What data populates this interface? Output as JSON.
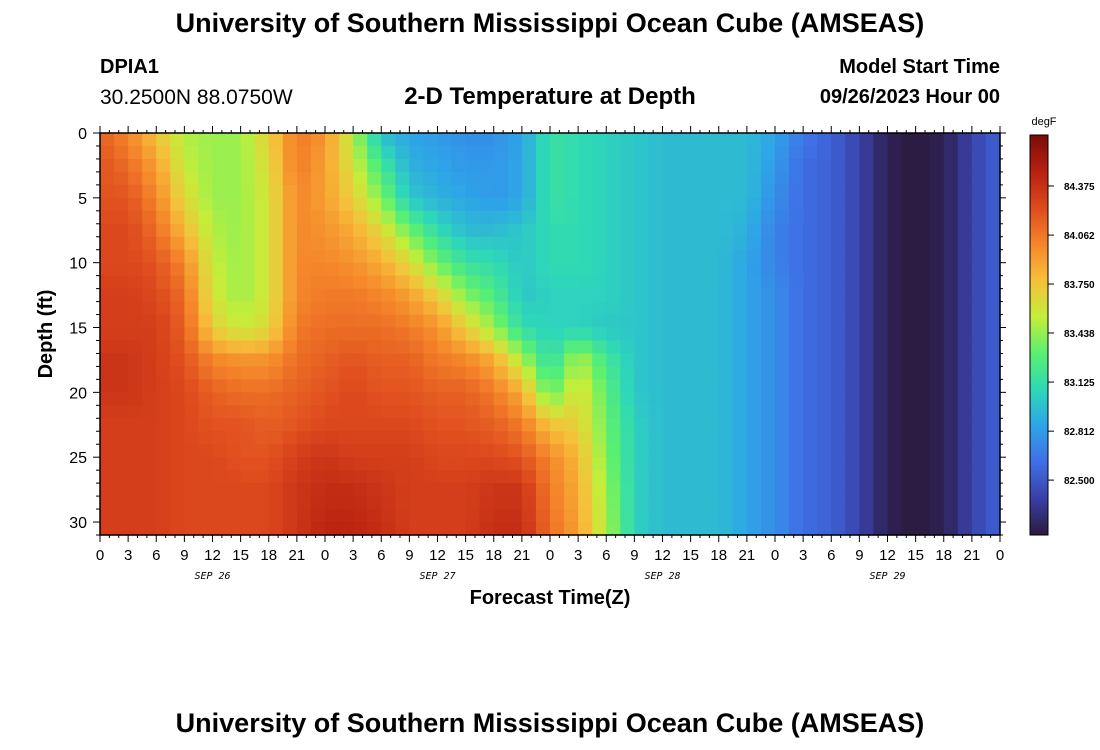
{
  "header": {
    "title": "University of Southern Mississippi Ocean Cube (AMSEAS)",
    "station_id": "DPIA1",
    "station_coords": "30.2500N  88.0750W",
    "plot_title": "2-D Temperature at Depth",
    "run_label": "Model Start Time",
    "run_value": "09/26/2023 Hour 00"
  },
  "footer": {
    "title": "University of Southern Mississippi Ocean Cube (AMSEAS)"
  },
  "chart_data": {
    "type": "heatmap",
    "title": "2-D Temperature at Depth",
    "xlabel": "Forecast Time(Z)",
    "ylabel": "Depth (ft)",
    "x_tick_labels": [
      "0",
      "3",
      "6",
      "9",
      "12",
      "15",
      "18",
      "21",
      "0",
      "3",
      "6",
      "9",
      "12",
      "15",
      "18",
      "21",
      "0",
      "3",
      "6",
      "9",
      "12",
      "15",
      "18",
      "21",
      "0",
      "3",
      "6",
      "9",
      "12",
      "15",
      "18",
      "21",
      "0"
    ],
    "date_labels": [
      {
        "label": "SEP 26",
        "hour_index": 12
      },
      {
        "label": "SEP 27",
        "hour_index": 36
      },
      {
        "label": "SEP 28",
        "hour_index": 60
      },
      {
        "label": "SEP 29",
        "hour_index": 84
      }
    ],
    "x_range_hours": [
      0,
      96
    ],
    "x_step_hours": 3,
    "ylim": [
      0,
      31
    ],
    "y_ticks": [
      0,
      5,
      10,
      15,
      20,
      25,
      30
    ],
    "y_inverted": true,
    "colorbar": {
      "unit": "degF",
      "tick_labels": [
        "84.375",
        "84.062",
        "83.750",
        "83.438",
        "83.125",
        "82.812",
        "82.500"
      ],
      "range": [
        82.15,
        84.7
      ],
      "colors": [
        "#2a1a3d",
        "#3a3fa6",
        "#3f6fe6",
        "#2ea4e8",
        "#2ed8b8",
        "#5af070",
        "#c4ee3a",
        "#f6c03a",
        "#f5862a",
        "#de4a1e",
        "#b82010",
        "#7a0c06"
      ]
    },
    "grid": false,
    "depths_ft": [
      0,
      2.5,
      5,
      7.5,
      10,
      12.5,
      15,
      17.5,
      20,
      22.5,
      25,
      27.5,
      31
    ],
    "times_hours": [
      0,
      3,
      6,
      9,
      12,
      15,
      18,
      21,
      24,
      27,
      30,
      33,
      36,
      39,
      42,
      45,
      48,
      51,
      54,
      57,
      60,
      63,
      66,
      69,
      72,
      75,
      78,
      81,
      84,
      87,
      90,
      93,
      96
    ],
    "temperature_degF": [
      [
        84.15,
        84.0,
        83.75,
        83.5,
        83.45,
        83.45,
        83.7,
        84.05,
        83.95,
        83.5,
        82.95,
        82.85,
        82.8,
        82.75,
        82.75,
        82.85,
        83.15,
        83.1,
        83.05,
        83.0,
        82.95,
        82.95,
        82.95,
        82.95,
        82.85,
        82.65,
        82.55,
        82.4,
        82.2,
        82.15,
        82.2,
        82.4,
        82.55
      ],
      [
        84.2,
        84.1,
        83.9,
        83.55,
        83.45,
        83.45,
        83.65,
        84.05,
        83.9,
        83.6,
        83.2,
        82.9,
        82.85,
        82.8,
        82.8,
        82.85,
        83.15,
        83.1,
        83.05,
        83.0,
        82.95,
        82.95,
        82.95,
        82.95,
        82.8,
        82.6,
        82.55,
        82.4,
        82.2,
        82.15,
        82.2,
        82.4,
        82.55
      ],
      [
        84.2,
        84.2,
        84.0,
        83.65,
        83.45,
        83.45,
        83.6,
        84.0,
        83.9,
        83.7,
        83.4,
        83.0,
        82.9,
        82.85,
        82.8,
        82.85,
        83.15,
        83.1,
        83.05,
        83.0,
        82.95,
        82.95,
        82.95,
        82.95,
        82.75,
        82.6,
        82.55,
        82.4,
        82.2,
        82.15,
        82.2,
        82.4,
        82.55
      ],
      [
        84.25,
        84.25,
        84.1,
        83.8,
        83.5,
        83.45,
        83.6,
        84.0,
        83.95,
        83.85,
        83.65,
        83.35,
        83.1,
        82.95,
        82.95,
        83.0,
        83.1,
        83.1,
        83.05,
        83.0,
        82.95,
        82.95,
        82.95,
        82.9,
        82.7,
        82.6,
        82.55,
        82.4,
        82.2,
        82.15,
        82.2,
        82.4,
        82.55
      ],
      [
        84.25,
        84.25,
        84.2,
        84.0,
        83.55,
        83.45,
        83.6,
        84.0,
        84.0,
        83.95,
        83.85,
        83.65,
        83.35,
        83.15,
        83.1,
        83.0,
        83.1,
        83.1,
        83.05,
        83.0,
        82.95,
        82.95,
        82.95,
        82.85,
        82.7,
        82.6,
        82.55,
        82.4,
        82.2,
        82.15,
        82.2,
        82.4,
        82.55
      ],
      [
        84.3,
        84.3,
        84.25,
        84.1,
        83.6,
        83.45,
        83.6,
        84.0,
        84.05,
        84.05,
        84.0,
        83.9,
        83.7,
        83.4,
        83.25,
        83.0,
        83.05,
        83.05,
        83.05,
        83.0,
        82.95,
        82.95,
        82.95,
        82.85,
        82.75,
        82.6,
        82.55,
        82.4,
        82.2,
        82.15,
        82.2,
        82.4,
        82.55
      ],
      [
        84.3,
        84.3,
        84.3,
        84.15,
        83.7,
        83.55,
        83.65,
        84.05,
        84.1,
        84.1,
        84.1,
        84.05,
        83.95,
        83.7,
        83.45,
        83.1,
        83.05,
        83.05,
        83.0,
        83.0,
        82.95,
        82.95,
        82.95,
        82.85,
        82.75,
        82.6,
        82.55,
        82.4,
        82.2,
        82.15,
        82.2,
        82.4,
        82.55
      ],
      [
        84.35,
        84.35,
        84.3,
        84.2,
        84.0,
        83.95,
        83.95,
        84.1,
        84.15,
        84.2,
        84.15,
        84.15,
        84.05,
        84.0,
        83.85,
        83.5,
        83.1,
        83.5,
        83.2,
        83.0,
        82.95,
        82.95,
        82.95,
        82.85,
        82.75,
        82.6,
        82.55,
        82.4,
        82.2,
        82.15,
        82.2,
        82.4,
        82.55
      ],
      [
        84.35,
        84.35,
        84.3,
        84.25,
        84.15,
        84.1,
        84.1,
        84.15,
        84.2,
        84.25,
        84.2,
        84.2,
        84.15,
        84.15,
        84.05,
        83.85,
        83.3,
        83.65,
        83.3,
        83.0,
        82.95,
        82.95,
        82.95,
        82.85,
        82.75,
        82.6,
        82.55,
        82.4,
        82.2,
        82.15,
        82.2,
        82.4,
        82.55
      ],
      [
        84.3,
        84.3,
        84.3,
        84.25,
        84.2,
        84.2,
        84.15,
        84.2,
        84.25,
        84.25,
        84.25,
        84.25,
        84.2,
        84.2,
        84.15,
        84.05,
        83.75,
        83.7,
        83.35,
        83.05,
        82.95,
        82.95,
        82.95,
        82.85,
        82.75,
        82.6,
        82.55,
        82.4,
        82.2,
        82.15,
        82.2,
        82.4,
        82.55
      ],
      [
        84.3,
        84.3,
        84.3,
        84.25,
        84.25,
        84.2,
        84.2,
        84.3,
        84.35,
        84.3,
        84.3,
        84.3,
        84.25,
        84.25,
        84.25,
        84.2,
        84.0,
        83.8,
        83.4,
        83.05,
        82.95,
        82.95,
        82.95,
        82.85,
        82.75,
        82.6,
        82.55,
        82.4,
        82.2,
        82.15,
        82.2,
        82.4,
        82.55
      ],
      [
        84.3,
        84.3,
        84.3,
        84.25,
        84.25,
        84.25,
        84.25,
        84.35,
        84.4,
        84.4,
        84.35,
        84.3,
        84.3,
        84.3,
        84.35,
        84.35,
        84.05,
        83.85,
        83.45,
        83.05,
        82.95,
        82.95,
        82.95,
        82.85,
        82.75,
        82.6,
        82.55,
        82.4,
        82.2,
        82.15,
        82.2,
        82.4,
        82.55
      ],
      [
        84.3,
        84.3,
        84.3,
        84.25,
        84.25,
        84.25,
        84.25,
        84.35,
        84.45,
        84.45,
        84.4,
        84.3,
        84.3,
        84.3,
        84.4,
        84.4,
        84.1,
        83.9,
        83.5,
        83.05,
        82.95,
        82.95,
        82.95,
        82.85,
        82.75,
        82.6,
        82.55,
        82.4,
        82.2,
        82.15,
        82.2,
        82.4,
        82.55
      ]
    ]
  }
}
